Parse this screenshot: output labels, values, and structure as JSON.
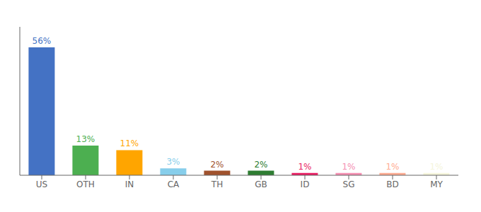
{
  "chart_data": {
    "type": "bar",
    "categories": [
      "US",
      "OTH",
      "IN",
      "CA",
      "TH",
      "GB",
      "ID",
      "SG",
      "BD",
      "MY"
    ],
    "values": [
      56,
      13,
      11,
      3,
      2,
      2,
      1,
      1,
      1,
      1
    ],
    "value_labels": [
      "56%",
      "13%",
      "11%",
      "3%",
      "2%",
      "2%",
      "1%",
      "1%",
      "1%",
      "1%"
    ],
    "colors": [
      "#4472C4",
      "#4CAF50",
      "#FFA500",
      "#87CEEB",
      "#A0522D",
      "#2E7D32",
      "#E91E63",
      "#F48FB1",
      "#FFAB91",
      "#F5F5DC"
    ],
    "ylim": [
      0,
      65
    ],
    "tick_labels": "x",
    "data_labels": true,
    "grid": false
  }
}
